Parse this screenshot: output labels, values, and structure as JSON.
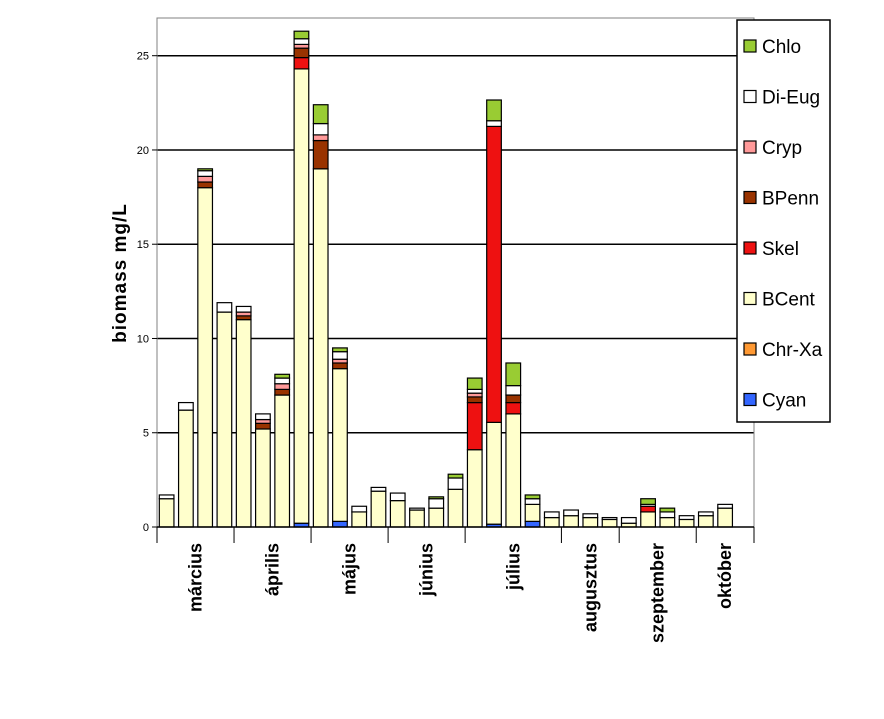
{
  "chart_data": {
    "type": "bar",
    "stacked": true,
    "ylabel": "biomass mg/L",
    "xlabel": "",
    "ylim": [
      0,
      27
    ],
    "yticks": [
      0,
      5,
      10,
      15,
      20,
      25
    ],
    "grid": true,
    "legend_position": "right",
    "groups": [
      {
        "label": "március",
        "count": 4
      },
      {
        "label": "április",
        "count": 4
      },
      {
        "label": "május",
        "count": 4
      },
      {
        "label": "június",
        "count": 4
      },
      {
        "label": "július",
        "count": 5
      },
      {
        "label": "augusztus",
        "count": 3
      },
      {
        "label": "szeptember",
        "count": 4
      },
      {
        "label": "október",
        "count": 3
      }
    ],
    "series": [
      {
        "name": "Cyan",
        "color": "#3366ff",
        "values": [
          0,
          0,
          0,
          0,
          0,
          0,
          0,
          0.2,
          0,
          0.3,
          0,
          0,
          0,
          0,
          0,
          0,
          0,
          0.15,
          0,
          0.3,
          0,
          0,
          0,
          0,
          0,
          0,
          0,
          0,
          0,
          0,
          0
        ]
      },
      {
        "name": "Chr-Xa",
        "color": "#ff9933",
        "values": [
          0,
          0,
          0,
          0,
          0,
          0,
          0,
          0,
          0,
          0,
          0,
          0,
          0,
          0,
          0,
          0,
          0,
          0,
          0,
          0,
          0,
          0,
          0,
          0,
          0,
          0,
          0,
          0,
          0,
          0,
          0
        ]
      },
      {
        "name": "BCent",
        "color": "#ffffcc",
        "values": [
          1.5,
          6.2,
          18.0,
          11.4,
          11.0,
          5.2,
          7.0,
          24.1,
          19.0,
          8.1,
          0.8,
          1.9,
          1.4,
          0.9,
          1.0,
          2.0,
          4.1,
          5.4,
          6.0,
          0.9,
          0.5,
          0.6,
          0.5,
          0.4,
          0.2,
          0.8,
          0.5,
          0.4,
          0.6,
          1.0,
          0
        ]
      },
      {
        "name": "Skel",
        "color": "#ee1111",
        "values": [
          0,
          0,
          0,
          0,
          0,
          0,
          0,
          0.6,
          0,
          0,
          0,
          0,
          0,
          0,
          0,
          0,
          2.5,
          15.7,
          0.6,
          0,
          0,
          0,
          0,
          0,
          0,
          0.3,
          0,
          0,
          0,
          0,
          0
        ]
      },
      {
        "name": "BPenn",
        "color": "#993300",
        "values": [
          0,
          0,
          0.3,
          0,
          0.2,
          0.3,
          0.3,
          0.5,
          1.5,
          0.3,
          0,
          0,
          0,
          0,
          0,
          0,
          0.3,
          0,
          0.4,
          0,
          0,
          0,
          0,
          0,
          0,
          0,
          0,
          0,
          0,
          0,
          0
        ]
      },
      {
        "name": "Cryp",
        "color": "#ff9999",
        "values": [
          0,
          0,
          0.3,
          0,
          0.2,
          0.2,
          0.3,
          0.2,
          0.3,
          0.2,
          0,
          0,
          0,
          0,
          0,
          0,
          0.2,
          0,
          0,
          0,
          0,
          0,
          0,
          0,
          0,
          0,
          0,
          0,
          0,
          0,
          0
        ]
      },
      {
        "name": "Di-Eug",
        "color": "#ffffff",
        "values": [
          0.2,
          0.4,
          0.3,
          0.5,
          0.3,
          0.3,
          0.3,
          0.3,
          0.6,
          0.4,
          0.3,
          0.2,
          0.4,
          0.1,
          0.5,
          0.6,
          0.2,
          0.3,
          0.5,
          0.3,
          0.3,
          0.3,
          0.2,
          0.1,
          0.3,
          0.1,
          0.3,
          0.2,
          0.2,
          0.2,
          0
        ]
      },
      {
        "name": "Chlo",
        "color": "#99cc33",
        "values": [
          0,
          0,
          0.1,
          0,
          0,
          0,
          0.2,
          0.4,
          1.0,
          0.2,
          0,
          0,
          0,
          0,
          0.1,
          0.2,
          0.6,
          1.1,
          1.2,
          0.2,
          0,
          0,
          0,
          0,
          0,
          0.3,
          0.2,
          0,
          0,
          0,
          0
        ]
      }
    ]
  }
}
